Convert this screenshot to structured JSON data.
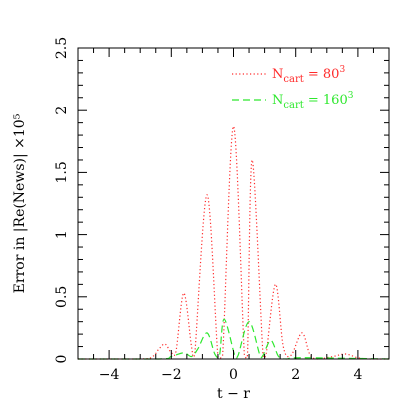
{
  "chart_data": {
    "type": "line",
    "xlabel": "t − r",
    "ylabel": "Error in |Re(News)| ×10⁵",
    "xlim": [
      -5,
      5
    ],
    "ylim": [
      0,
      2.5
    ],
    "x_ticks": [
      -4,
      -2,
      0,
      2,
      4
    ],
    "x_tick_labels": [
      "−4",
      "−2",
      "0",
      "2",
      "4"
    ],
    "y_ticks": [
      0,
      0.5,
      1,
      1.5,
      2,
      2.5
    ],
    "y_tick_labels": [
      "0",
      "0.5",
      "1",
      "1.5",
      "2",
      "2.5"
    ],
    "grid": false,
    "legend_position": "top-right",
    "series": [
      {
        "name": "N_cart = 80³",
        "legend_base": "N",
        "legend_sub": "cart",
        "legend_rest": " = 80",
        "legend_sup": "3",
        "color": "#ff2a2a",
        "style": "dotted",
        "points": [
          [
            -5.0,
            0.0
          ],
          [
            -3.0,
            0.0
          ],
          [
            -2.6,
            0.02
          ],
          [
            -2.4,
            0.08
          ],
          [
            -2.2,
            0.12
          ],
          [
            -2.0,
            0.05
          ],
          [
            -1.85,
            0.06
          ],
          [
            -1.6,
            0.53
          ],
          [
            -1.35,
            0.1
          ],
          [
            -1.25,
            0.03
          ],
          [
            -0.85,
            1.32
          ],
          [
            -0.5,
            0.02
          ],
          [
            -0.35,
            0.03
          ],
          [
            0.0,
            1.87
          ],
          [
            0.35,
            0.03
          ],
          [
            0.45,
            0.03
          ],
          [
            0.6,
            1.6
          ],
          [
            0.95,
            0.03
          ],
          [
            1.05,
            0.04
          ],
          [
            1.35,
            0.6
          ],
          [
            1.6,
            0.1
          ],
          [
            1.85,
            0.03
          ],
          [
            2.2,
            0.21
          ],
          [
            2.45,
            0.04
          ],
          [
            2.7,
            0.0
          ],
          [
            3.2,
            0.02
          ],
          [
            3.6,
            0.04
          ],
          [
            4.0,
            0.01
          ],
          [
            4.4,
            0.0
          ],
          [
            5.0,
            0.0
          ]
        ]
      },
      {
        "name": "N_cart = 160³",
        "legend_base": "N",
        "legend_sub": "cart",
        "legend_rest": " = 160",
        "legend_sup": "3",
        "color": "#2ee82e",
        "style": "dashed",
        "points": [
          [
            -5.0,
            0.0
          ],
          [
            -2.4,
            0.0
          ],
          [
            -2.0,
            0.02
          ],
          [
            -1.6,
            0.05
          ],
          [
            -1.35,
            0.02
          ],
          [
            -1.15,
            0.08
          ],
          [
            -0.85,
            0.21
          ],
          [
            -0.6,
            0.04
          ],
          [
            -0.45,
            0.03
          ],
          [
            -0.3,
            0.32
          ],
          [
            0.05,
            0.02
          ],
          [
            0.15,
            0.03
          ],
          [
            0.5,
            0.3
          ],
          [
            0.85,
            0.03
          ],
          [
            0.95,
            0.03
          ],
          [
            1.2,
            0.15
          ],
          [
            1.45,
            0.02
          ],
          [
            1.7,
            0.0
          ],
          [
            2.2,
            0.01
          ],
          [
            5.0,
            0.0
          ]
        ]
      }
    ]
  }
}
